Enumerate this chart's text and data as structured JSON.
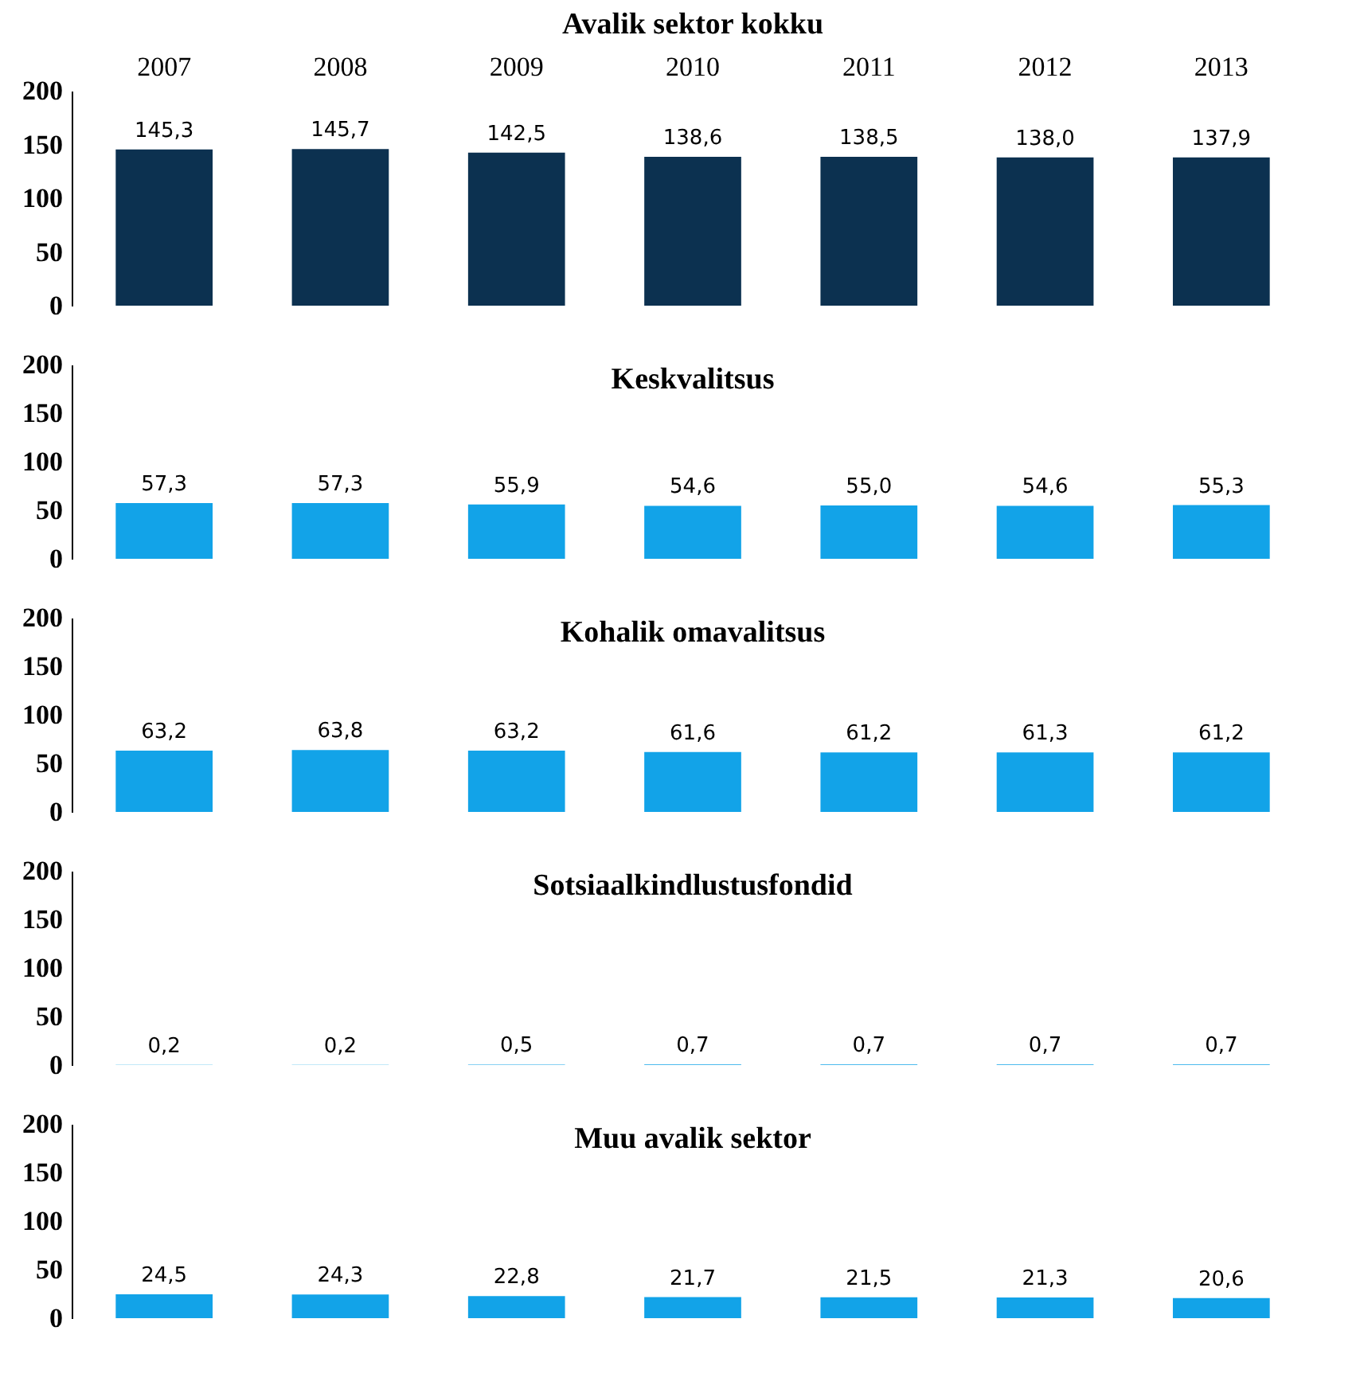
{
  "chart_data": [
    {
      "type": "bar",
      "title": "Avalik sektor kokku",
      "categories": [
        "2007",
        "2008",
        "2009",
        "2010",
        "2011",
        "2012",
        "2013"
      ],
      "values": [
        145.3,
        145.7,
        142.5,
        138.6,
        138.5,
        138.0,
        137.9
      ],
      "value_labels": [
        "145,3",
        "145,7",
        "142,5",
        "138,6",
        "138,5",
        "138,0",
        "137,9"
      ],
      "color": "#0c3150",
      "ylim": [
        0,
        200
      ],
      "yticks": [
        0,
        50,
        100,
        150,
        200
      ],
      "grid": false
    },
    {
      "type": "bar",
      "title": "Keskvalitsus",
      "categories": [
        "2007",
        "2008",
        "2009",
        "2010",
        "2011",
        "2012",
        "2013"
      ],
      "values": [
        57.3,
        57.3,
        55.9,
        54.6,
        55.0,
        54.6,
        55.3
      ],
      "value_labels": [
        "57,3",
        "57,3",
        "55,9",
        "54,6",
        "55,0",
        "54,6",
        "55,3"
      ],
      "color": "#12a3e8",
      "ylim": [
        0,
        200
      ],
      "yticks": [
        0,
        50,
        100,
        150,
        200
      ],
      "grid": false,
      "tick_labels": "y"
    },
    {
      "type": "bar",
      "title": "Kohalik omavalitsus",
      "categories": [
        "2007",
        "2008",
        "2009",
        "2010",
        "2011",
        "2012",
        "2013"
      ],
      "values": [
        63.2,
        63.8,
        63.2,
        61.6,
        61.2,
        61.3,
        61.2
      ],
      "value_labels": [
        "63,2",
        "63,8",
        "63,2",
        "61,6",
        "61,2",
        "61,3",
        "61,2"
      ],
      "color": "#12a3e8",
      "ylim": [
        0,
        200
      ],
      "yticks": [
        0,
        50,
        100,
        150,
        200
      ],
      "grid": false,
      "tick_labels": "y"
    },
    {
      "type": "bar",
      "title": "Sotsiaalkindlustusfondid",
      "categories": [
        "2007",
        "2008",
        "2009",
        "2010",
        "2011",
        "2012",
        "2013"
      ],
      "values": [
        0.2,
        0.2,
        0.5,
        0.7,
        0.7,
        0.7,
        0.7
      ],
      "value_labels": [
        "0,2",
        "0,2",
        "0,5",
        "0,7",
        "0,7",
        "0,7",
        "0,7"
      ],
      "color": "#12a3e8",
      "ylim": [
        0,
        200
      ],
      "yticks": [
        0,
        50,
        100,
        150,
        200
      ],
      "grid": false,
      "tick_labels": "y"
    },
    {
      "type": "bar",
      "title": "Muu avalik sektor",
      "categories": [
        "2007",
        "2008",
        "2009",
        "2010",
        "2011",
        "2012",
        "2013"
      ],
      "values": [
        24.5,
        24.3,
        22.8,
        21.7,
        21.5,
        21.3,
        20.6
      ],
      "value_labels": [
        "24,5",
        "24,3",
        "22,8",
        "21,7",
        "21,5",
        "21,3",
        "20,6"
      ],
      "color": "#12a3e8",
      "ylim": [
        0,
        200
      ],
      "yticks": [
        0,
        50,
        100,
        150,
        200
      ],
      "grid": false,
      "tick_labels": "y"
    }
  ]
}
